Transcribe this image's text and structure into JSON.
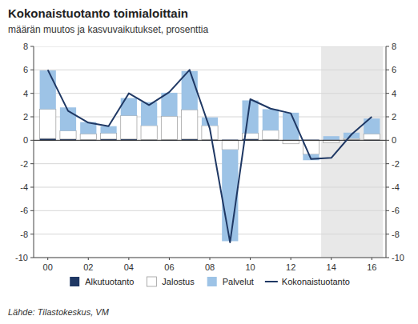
{
  "chart_data": {
    "type": "bar",
    "title": "Kokonaistuotanto toimialoittain",
    "subtitle": "määrän muutos ja kasvuvaikutukset, prosenttia",
    "source": "Lähde: Tilastokeskus, VM",
    "stacked": true,
    "grid": true,
    "legend": "bottom",
    "x": [
      2000,
      2001,
      2002,
      2003,
      2004,
      2005,
      2006,
      2007,
      2008,
      2009,
      2010,
      2011,
      2012,
      2013,
      2014,
      2015,
      2016
    ],
    "xlim": [
      1999.3,
      2016.7
    ],
    "xticks": [
      {
        "value": 2000,
        "label": "00"
      },
      {
        "value": 2002,
        "label": "02"
      },
      {
        "value": 2004,
        "label": "04"
      },
      {
        "value": 2006,
        "label": "06"
      },
      {
        "value": 2008,
        "label": "08"
      },
      {
        "value": 2010,
        "label": "10"
      },
      {
        "value": 2012,
        "label": "12"
      },
      {
        "value": 2014,
        "label": "14"
      },
      {
        "value": 2016,
        "label": "16"
      }
    ],
    "ylim": [
      -10,
      8
    ],
    "yticks": [
      -10,
      -8,
      -6,
      -4,
      -2,
      0,
      2,
      4,
      6,
      8
    ],
    "y2lim": [
      -10,
      8
    ],
    "y2ticks": [
      -10,
      -8,
      -6,
      -4,
      -2,
      0,
      2,
      4,
      6,
      8
    ],
    "forecast": {
      "xlim": [
        2013.5,
        2016.55
      ],
      "color": "#e8e8e8"
    },
    "series": [
      {
        "name": "Alkutuotanto",
        "type": "bar",
        "color": "#1f3864",
        "values": [
          0.15,
          0.1,
          0.05,
          0.1,
          0.1,
          0.05,
          0.05,
          0.1,
          0.05,
          0.05,
          0.1,
          0.05,
          0.05,
          0.05,
          0.05,
          0.05,
          0.05
        ]
      },
      {
        "name": "Jalostus",
        "type": "bar",
        "color": "#ffffff",
        "values": [
          2.5,
          0.7,
          0.5,
          0.5,
          2.0,
          1.2,
          2.0,
          2.5,
          1.2,
          -0.8,
          0.5,
          0.8,
          -0.3,
          -1.2,
          -0.2,
          0.1,
          0.5
        ]
      },
      {
        "name": "Palvelut",
        "type": "bar",
        "color": "#9dc3e6",
        "values": [
          3.3,
          2.0,
          1.0,
          0.6,
          1.5,
          2.0,
          2.0,
          3.3,
          0.7,
          -7.8,
          2.8,
          1.8,
          2.3,
          -0.5,
          0.3,
          0.5,
          1.3
        ]
      },
      {
        "name": "Kokonaistuotanto",
        "type": "line",
        "color": "#1f3864",
        "values": [
          6.0,
          2.5,
          1.5,
          1.2,
          4.0,
          3.0,
          4.1,
          6.0,
          1.0,
          -8.7,
          3.5,
          2.7,
          2.3,
          -1.6,
          -1.5,
          0.5,
          2.0
        ]
      }
    ]
  }
}
